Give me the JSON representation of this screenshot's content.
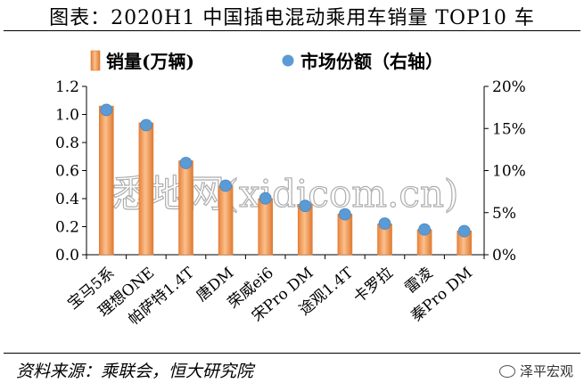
{
  "figure_title": "图表：2020H1 中国插电混动乘用车销量 TOP10 车",
  "source_note": "资料来源：乘联会，恒大研究院",
  "brand": "泽平宏观",
  "watermark": "悉地网(xidicom.cn)",
  "colors": {
    "bar": "#F4A460",
    "bar_edge": "#E07A30",
    "dot": "#5B9BD5",
    "axis": "#000000"
  },
  "chart_data": {
    "type": "bar",
    "categories": [
      "宝马5系",
      "理想ONE",
      "帕萨特1.4T",
      "唐DM",
      "荣威ei6",
      "宋Pro DM",
      "途观1.4T",
      "卡罗拉",
      "雷凌",
      "秦Pro DM"
    ],
    "series": [
      {
        "name": "销量(万辆)",
        "type": "bar",
        "axis": "left",
        "values": [
          1.06,
          0.94,
          0.67,
          0.49,
          0.4,
          0.36,
          0.29,
          0.22,
          0.18,
          0.17
        ]
      },
      {
        "name": "市场份额（右轴）",
        "type": "scatter",
        "axis": "right",
        "values": [
          17.2,
          15.4,
          10.9,
          8.2,
          6.7,
          5.8,
          4.8,
          3.7,
          3.0,
          2.8
        ]
      }
    ],
    "y_left": {
      "min": 0,
      "max": 1.2,
      "ticks": [
        "0.0",
        "0.2",
        "0.4",
        "0.6",
        "0.8",
        "1.0",
        "1.2"
      ]
    },
    "y_right": {
      "min": 0,
      "max": 20,
      "ticks": [
        "0%",
        "5%",
        "10%",
        "15%",
        "20%"
      ]
    },
    "legend_position": "top"
  }
}
